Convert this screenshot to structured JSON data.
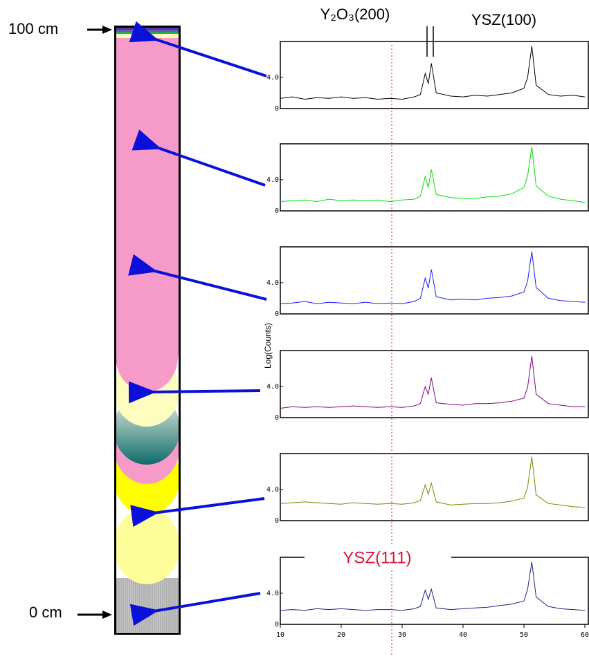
{
  "labels": {
    "top": "100 cm",
    "bottom": "0 cm",
    "peak_left": "Y₂O₃(200)",
    "peak_right": "YSZ(100)",
    "peak_bottom": "YSZ(111)",
    "y_axis": "Log(Counts)"
  },
  "marker_x": 28.3,
  "chart_data": [
    {
      "type": "line",
      "color": "#000000",
      "xlim": [
        10,
        60
      ],
      "ylim": [
        0,
        8.6
      ],
      "yticks": [
        {
          "value": 4,
          "label": "4.0"
        },
        0
      ],
      "x": [
        10,
        12,
        14,
        16,
        18,
        20,
        22,
        24,
        26,
        28,
        30,
        32,
        33,
        33.8,
        34.3,
        34.8,
        35.6,
        38,
        40,
        42,
        44,
        46,
        48,
        50,
        50.6,
        51.3,
        52,
        54,
        56,
        58,
        60
      ],
      "values": [
        1.3,
        1.5,
        1.2,
        1.4,
        1.3,
        1.5,
        1.3,
        1.4,
        1.2,
        1.3,
        1.2,
        1.5,
        1.8,
        4.5,
        3.2,
        5.8,
        2.0,
        1.6,
        1.5,
        1.7,
        1.6,
        1.8,
        2.0,
        2.6,
        4.0,
        8.0,
        3.0,
        1.8,
        1.6,
        1.7,
        1.5
      ]
    },
    {
      "type": "line",
      "color": "#00e000",
      "xlim": [
        10,
        60
      ],
      "ylim": [
        0,
        8.6
      ],
      "yticks": [
        {
          "value": 4,
          "label": "4.0"
        },
        0
      ],
      "x": [
        10,
        12,
        14,
        16,
        18,
        20,
        22,
        24,
        26,
        28,
        30,
        32,
        33,
        33.8,
        34.3,
        34.8,
        35.6,
        38,
        40,
        42,
        44,
        46,
        48,
        50,
        50.6,
        51.3,
        52,
        54,
        56,
        58,
        60
      ],
      "values": [
        1.2,
        1.3,
        1.4,
        1.2,
        1.5,
        1.3,
        1.4,
        1.3,
        1.4,
        1.2,
        1.4,
        1.5,
        1.9,
        4.4,
        3.0,
        5.3,
        2.1,
        1.7,
        1.6,
        1.6,
        1.8,
        1.9,
        2.2,
        3.0,
        4.5,
        8.2,
        3.2,
        1.9,
        1.5,
        1.3,
        1.1
      ]
    },
    {
      "type": "line",
      "color": "#1a1aff",
      "xlim": [
        10,
        60
      ],
      "ylim": [
        0,
        8.6
      ],
      "yticks": [
        {
          "value": 4,
          "label": "4.0"
        },
        0
      ],
      "x": [
        10,
        12,
        14,
        16,
        18,
        20,
        22,
        24,
        26,
        28,
        30,
        32,
        33,
        33.8,
        34.3,
        34.8,
        35.6,
        38,
        40,
        42,
        44,
        46,
        48,
        50,
        50.6,
        51.3,
        52,
        54,
        56,
        58,
        60
      ],
      "values": [
        1.3,
        1.4,
        1.6,
        1.3,
        1.5,
        1.4,
        1.3,
        1.5,
        1.3,
        1.4,
        1.3,
        1.6,
        2.0,
        4.6,
        3.3,
        5.7,
        2.2,
        1.8,
        1.9,
        1.8,
        2.0,
        2.1,
        2.3,
        2.8,
        4.2,
        8.0,
        3.4,
        2.0,
        1.7,
        1.6,
        1.5
      ]
    },
    {
      "type": "line",
      "color": "#800080",
      "xlim": [
        10,
        60
      ],
      "ylim": [
        0,
        8.6
      ],
      "yticks": [
        {
          "value": 4,
          "label": "4.0"
        },
        0
      ],
      "x": [
        10,
        12,
        14,
        16,
        18,
        20,
        22,
        24,
        26,
        28,
        30,
        32,
        33,
        33.8,
        34.3,
        34.8,
        35.6,
        38,
        40,
        42,
        44,
        46,
        48,
        50,
        50.6,
        51.3,
        52,
        54,
        56,
        58,
        60
      ],
      "values": [
        1.2,
        1.4,
        1.3,
        1.4,
        1.3,
        1.4,
        1.5,
        1.4,
        1.3,
        1.4,
        1.3,
        1.5,
        1.8,
        4.0,
        3.0,
        5.1,
        1.9,
        1.7,
        1.6,
        1.8,
        1.8,
        1.9,
        2.1,
        2.5,
        3.9,
        7.9,
        3.0,
        1.8,
        1.6,
        1.4,
        1.4
      ]
    },
    {
      "type": "line",
      "color": "#808000",
      "xlim": [
        10,
        60
      ],
      "ylim": [
        0,
        8.6
      ],
      "yticks": [
        {
          "value": 4,
          "label": "4.0"
        },
        0
      ],
      "x": [
        10,
        12,
        14,
        16,
        18,
        20,
        22,
        24,
        26,
        28,
        30,
        32,
        33,
        33.8,
        34.3,
        34.8,
        35.6,
        38,
        40,
        42,
        44,
        46,
        48,
        50,
        50.6,
        51.3,
        52,
        54,
        56,
        58,
        60
      ],
      "values": [
        2.2,
        2.3,
        2.4,
        2.3,
        2.2,
        2.1,
        2.3,
        2.2,
        2.1,
        2.2,
        2.1,
        2.3,
        2.6,
        4.6,
        3.4,
        4.8,
        2.4,
        2.0,
        2.1,
        2.2,
        2.2,
        2.3,
        2.5,
        2.9,
        4.3,
        8.2,
        3.3,
        2.2,
        2.0,
        1.8,
        1.7
      ]
    },
    {
      "type": "line",
      "color": "#1a237e",
      "xlim": [
        10,
        60
      ],
      "ylim": [
        0,
        8.6
      ],
      "yticks": [
        {
          "value": 4,
          "label": "4.0"
        },
        0
      ],
      "xticks": [
        10,
        20,
        30,
        40,
        50,
        60
      ],
      "x": [
        10,
        12,
        14,
        16,
        18,
        20,
        22,
        24,
        26,
        28,
        30,
        32,
        33,
        33.8,
        34.3,
        34.8,
        35.6,
        38,
        40,
        42,
        44,
        46,
        48,
        50,
        50.6,
        51.3,
        52,
        54,
        56,
        58,
        60
      ],
      "values": [
        1.8,
        1.9,
        1.8,
        2.0,
        1.9,
        2.0,
        1.9,
        1.8,
        1.9,
        1.9,
        1.8,
        2.0,
        2.3,
        4.4,
        3.2,
        4.5,
        2.1,
        1.9,
        2.0,
        2.1,
        2.2,
        2.4,
        2.6,
        3.0,
        4.5,
        8.0,
        3.5,
        2.3,
        2.0,
        1.9,
        1.8
      ]
    }
  ]
}
